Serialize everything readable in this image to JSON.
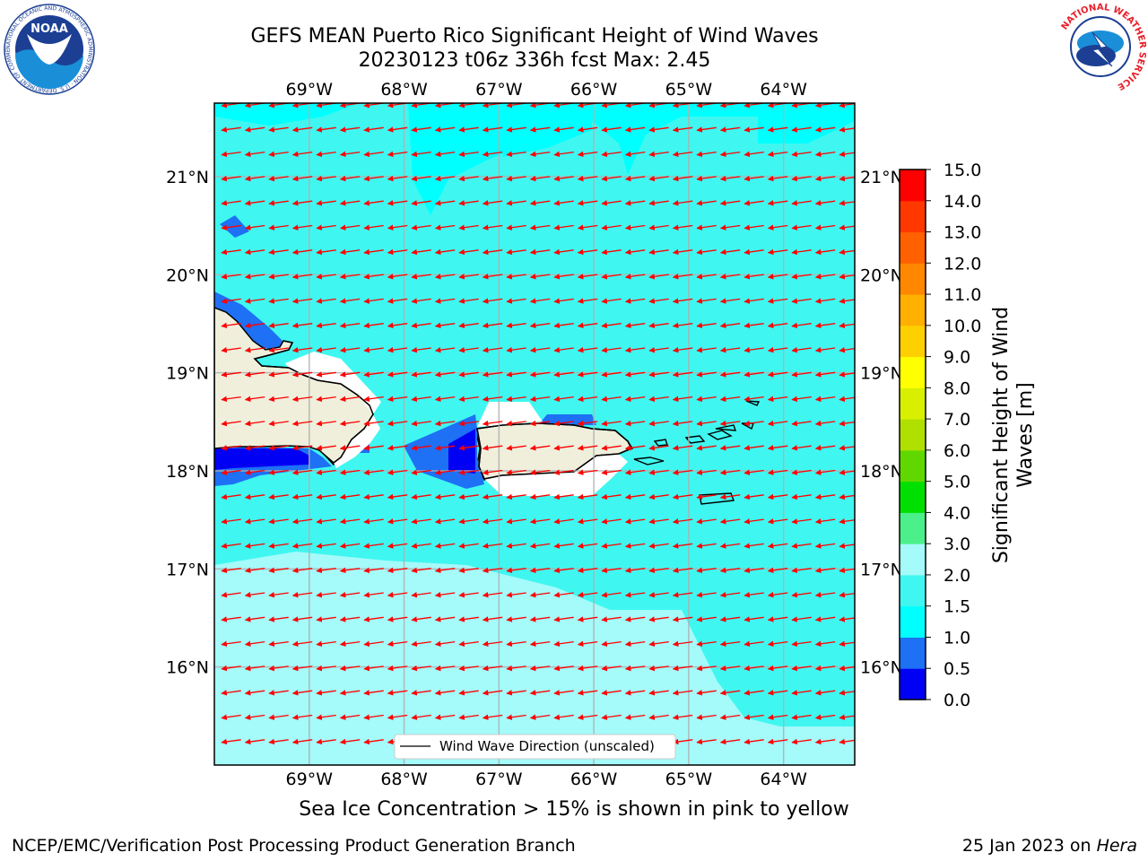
{
  "header": {
    "title_line1": "GEFS MEAN Puerto Rico Significant Height of Wind Waves",
    "title_line2": "20230123 t06z 336h fcst   Max: 2.45"
  },
  "map": {
    "lon_labels": [
      "69°W",
      "68°W",
      "67°W",
      "66°W",
      "65°W",
      "64°W"
    ],
    "lon_values": [
      -69,
      -68,
      -67,
      -66,
      -65,
      -64
    ],
    "lat_labels": [
      "21°N",
      "20°N",
      "19°N",
      "18°N",
      "17°N",
      "16°N"
    ],
    "lat_values": [
      21,
      20,
      19,
      18,
      17,
      16
    ],
    "lon_range": [
      -70.0,
      -63.25
    ],
    "lat_range": [
      15.0,
      21.75
    ],
    "legend_label": "Wind Wave Direction (unscaled)",
    "arrow_color": "#ff0000",
    "land_color": "#efefdc",
    "ocean_color": "#1ffbf5"
  },
  "colorbar": {
    "label": "Significant Height of Wind Waves [m]",
    "label_line1": "Significant Height of Wind",
    "label_line2": "Waves [m]",
    "ticks": [
      "0.0",
      "0.5",
      "1.0",
      "1.5",
      "2.0",
      "3.0",
      "4.0",
      "5.0",
      "6.0",
      "7.0",
      "8.0",
      "9.0",
      "10.0",
      "11.0",
      "12.0",
      "13.0",
      "14.0",
      "15.0"
    ],
    "colors": [
      "#0000f5",
      "#1e70f5",
      "#00ffff",
      "#3ff7f0",
      "#a5fafa",
      "#4cf08a",
      "#00e000",
      "#60d800",
      "#b0e000",
      "#d8f000",
      "#ffff00",
      "#ffd000",
      "#ffb000",
      "#ff8800",
      "#ff6000",
      "#ff3800",
      "#ff0000"
    ]
  },
  "footer": {
    "note": "Sea Ice Concentration > 15% is shown in pink to yellow",
    "left": "NCEP/EMC/Verification Post Processing Product Generation Branch",
    "right_date": "25 Jan 2023 on ",
    "right_host": "Hera"
  },
  "logos": {
    "noaa_text": "NOAA",
    "noaa_ring": "NATIONAL OCEANIC AND ATMOSPHERIC ADMINISTRATION · U.S. DEPARTMENT OF COMMERCE",
    "nws_ring": "NATIONAL WEATHER SERVICE"
  }
}
